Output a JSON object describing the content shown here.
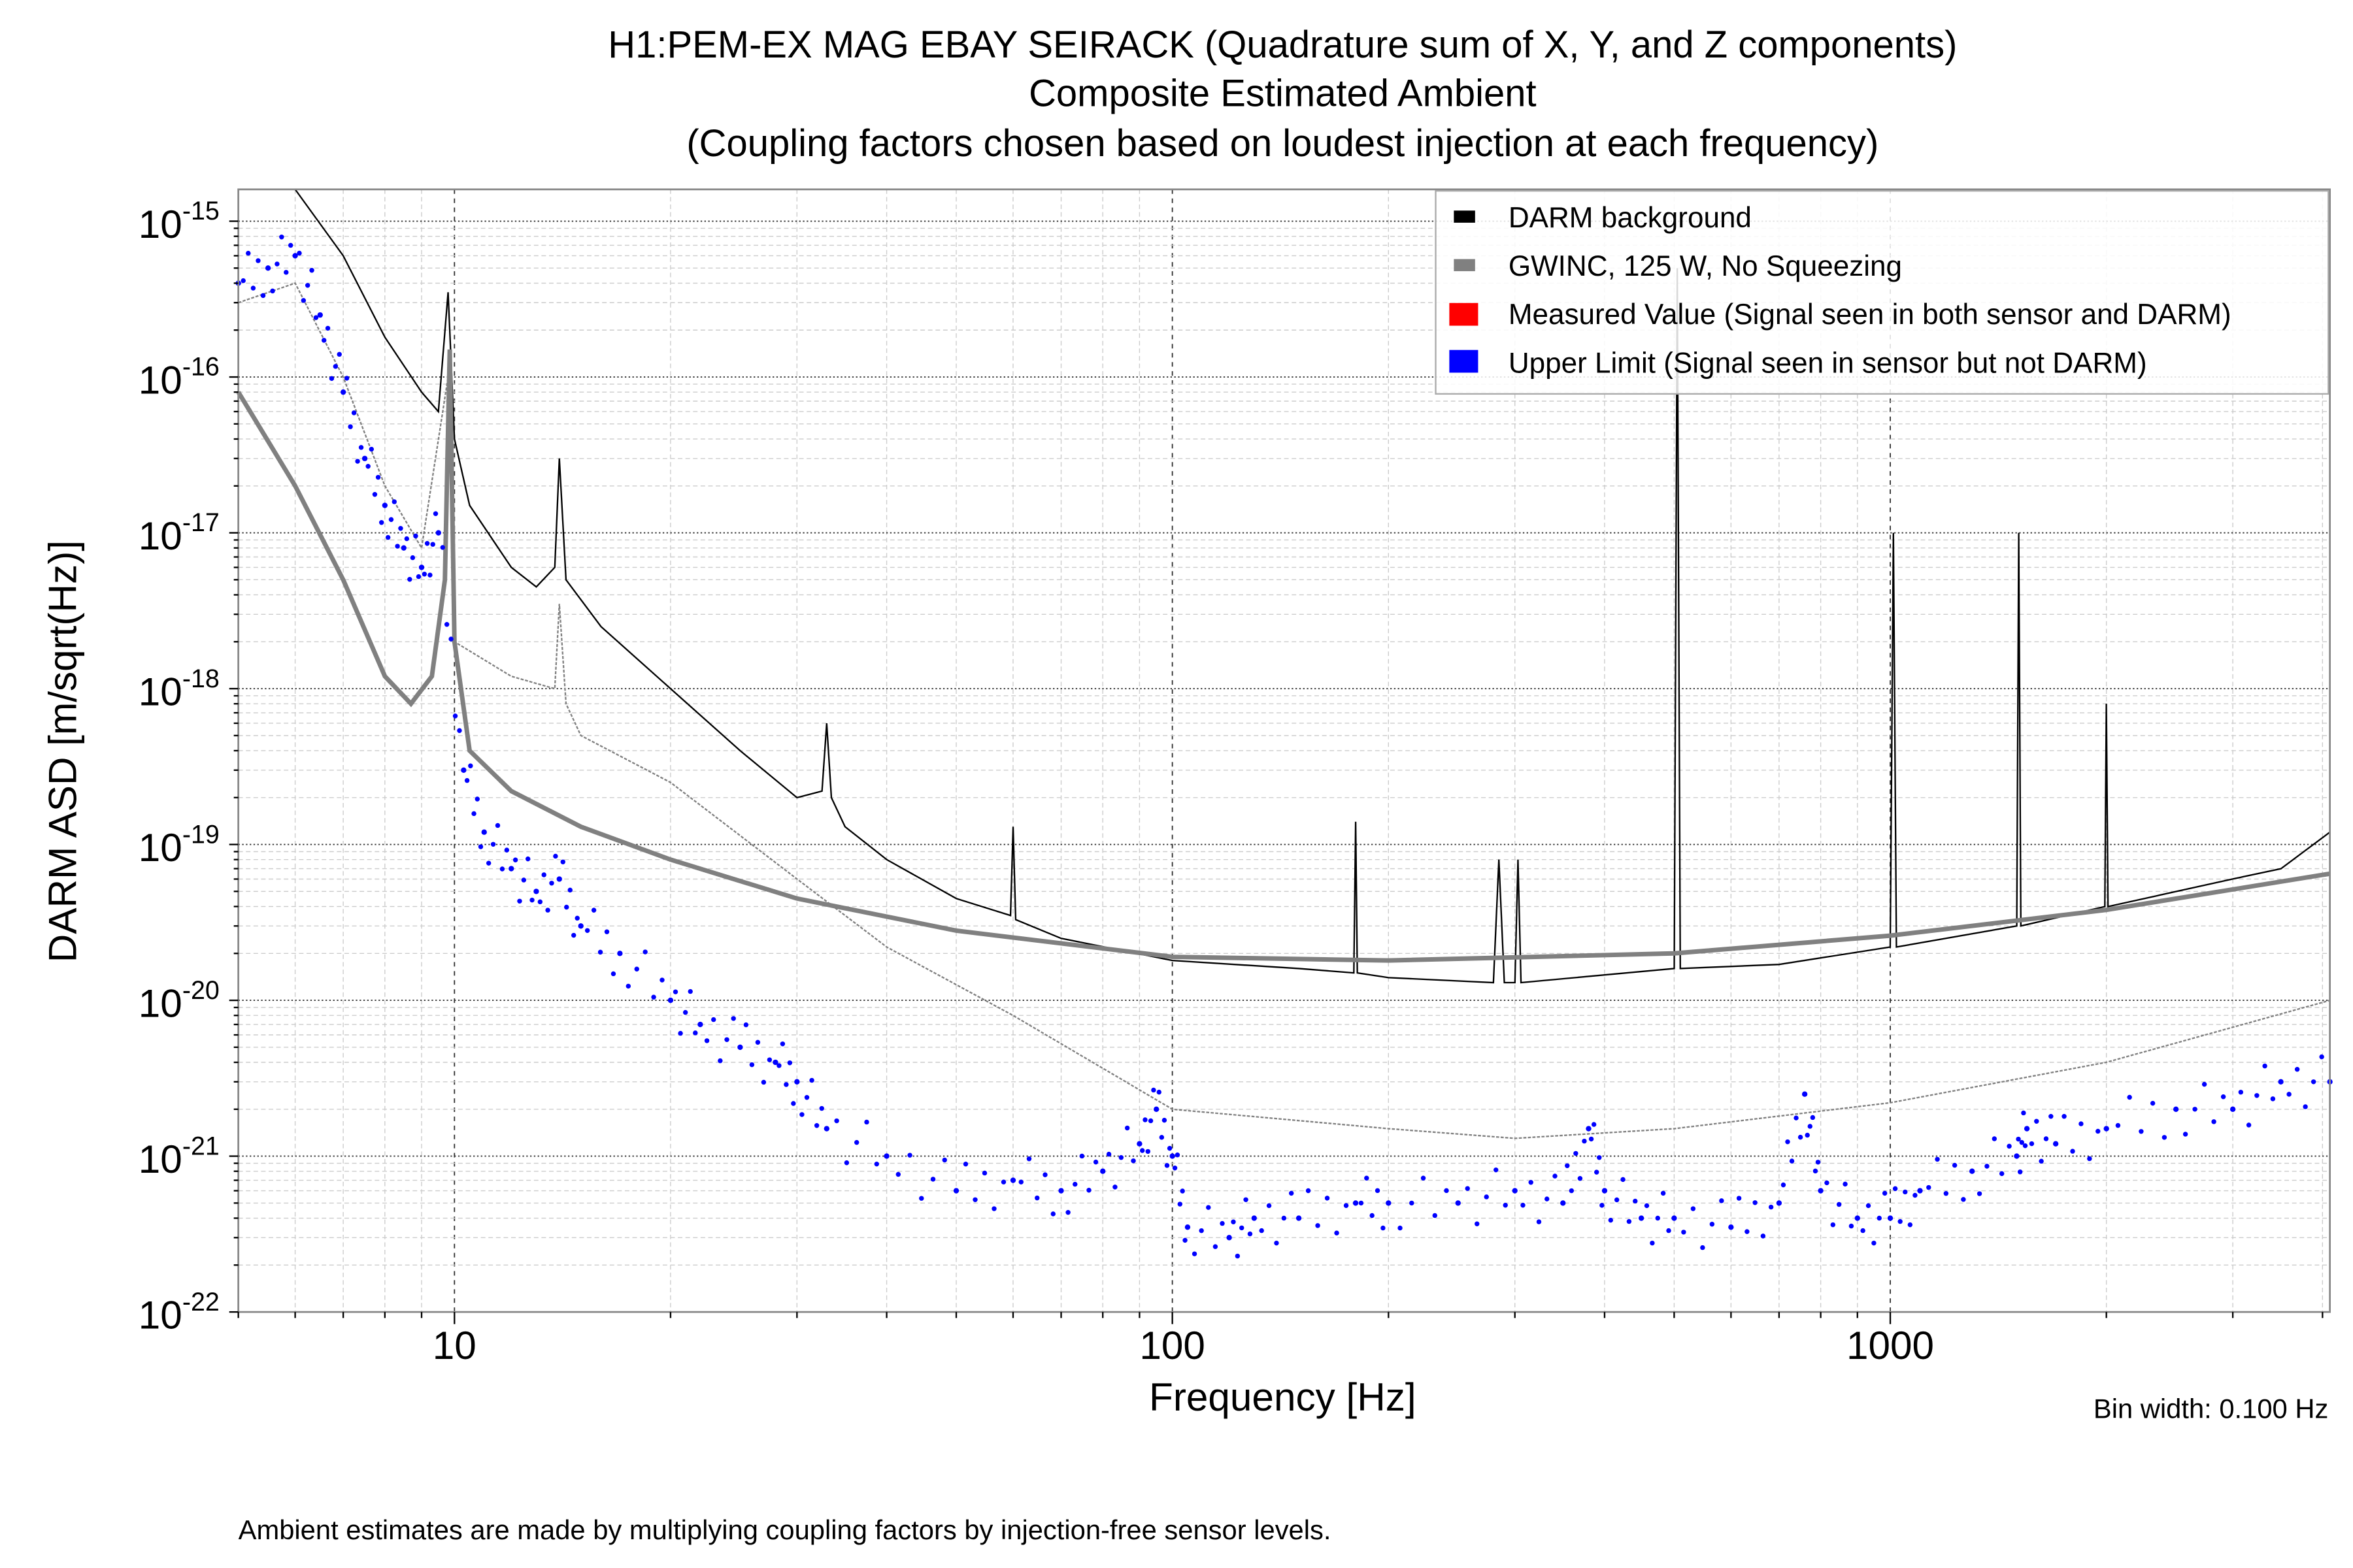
{
  "chart_data": {
    "type": "line",
    "title": [
      "H1:PEM-EX MAG EBAY SEIRACK (Quadrature sum of X, Y, and Z components)",
      "Composite Estimated Ambient",
      "(Coupling factors chosen based on loudest injection at each frequency)"
    ],
    "xlabel": "Frequency [Hz]",
    "ylabel": "DARM ASD [m/sqrt(Hz)]",
    "xscale": "log",
    "yscale": "log",
    "xlim": [
      5,
      4096
    ],
    "ylim": [
      1e-22,
      1.6e-15
    ],
    "x_ticks": [
      {
        "v": 10,
        "label": "10"
      },
      {
        "v": 100,
        "label": "100"
      },
      {
        "v": 1000,
        "label": "1000"
      }
    ],
    "y_ticks": [
      {
        "v": -15,
        "label": "10",
        "exp": "-15"
      },
      {
        "v": -16,
        "label": "10",
        "exp": "-16"
      },
      {
        "v": -17,
        "label": "10",
        "exp": "-17"
      },
      {
        "v": -18,
        "label": "10",
        "exp": "-18"
      },
      {
        "v": -19,
        "label": "10",
        "exp": "-19"
      },
      {
        "v": -20,
        "label": "10",
        "exp": "-20"
      },
      {
        "v": -21,
        "label": "10",
        "exp": "-21"
      },
      {
        "v": -22,
        "label": "10",
        "exp": "-22"
      }
    ],
    "grid": true,
    "legend_position": "top-right",
    "legend": [
      {
        "label": "DARM background",
        "color": "#000000"
      },
      {
        "label": "GWINC, 125 W, No Squeezing",
        "color": "#808080"
      },
      {
        "label": "Measured Value (Signal seen in both sensor and DARM)",
        "color": "#ff0000"
      },
      {
        "label": "Upper Limit (Signal seen in sensor but not DARM)",
        "color": "#0000ff"
      }
    ],
    "series": [
      {
        "name": "DARM background",
        "color": "#000000",
        "style": "thin-line",
        "points": [
          [
            5.8,
            2e-15
          ],
          [
            6,
            1.6e-15
          ],
          [
            7,
            6e-16
          ],
          [
            8,
            1.8e-16
          ],
          [
            9,
            8e-17
          ],
          [
            9.5,
            6e-17
          ],
          [
            9.8,
            3.5e-16
          ],
          [
            10,
            4e-17
          ],
          [
            10.5,
            1.5e-17
          ],
          [
            12,
            6e-18
          ],
          [
            13,
            4.5e-18
          ],
          [
            13.8,
            6e-18
          ],
          [
            14,
            3e-17
          ],
          [
            14.3,
            5e-18
          ],
          [
            16,
            2.5e-18
          ],
          [
            20,
            1e-18
          ],
          [
            25,
            4e-19
          ],
          [
            30,
            2e-19
          ],
          [
            32.5,
            2.2e-19
          ],
          [
            33,
            6e-19
          ],
          [
            33.5,
            2e-19
          ],
          [
            35,
            1.3e-19
          ],
          [
            40,
            8e-20
          ],
          [
            50,
            4.5e-20
          ],
          [
            59.5,
            3.5e-20
          ],
          [
            60,
            1.3e-19
          ],
          [
            60.5,
            3.3e-20
          ],
          [
            70,
            2.5e-20
          ],
          [
            100,
            1.8e-20
          ],
          [
            150,
            1.6e-20
          ],
          [
            179,
            1.5e-20
          ],
          [
            180,
            1.4e-19
          ],
          [
            181,
            1.5e-20
          ],
          [
            200,
            1.4e-20
          ],
          [
            280,
            1.3e-20
          ],
          [
            285,
            8e-20
          ],
          [
            290,
            1.3e-20
          ],
          [
            300,
            1.3e-20
          ],
          [
            303,
            8e-20
          ],
          [
            306,
            1.3e-20
          ],
          [
            500,
            1.6e-20
          ],
          [
            505,
            5e-16
          ],
          [
            510,
            1.6e-20
          ],
          [
            700,
            1.7e-20
          ],
          [
            1000,
            2.2e-20
          ],
          [
            1010,
            1e-17
          ],
          [
            1020,
            2.2e-20
          ],
          [
            1500,
            3e-20
          ],
          [
            1510,
            1e-17
          ],
          [
            1520,
            3e-20
          ],
          [
            1990,
            4e-20
          ],
          [
            2000,
            8e-19
          ],
          [
            2010,
            4e-20
          ],
          [
            3000,
            6e-20
          ],
          [
            3500,
            7e-20
          ],
          [
            4096,
            1.2e-19
          ]
        ]
      },
      {
        "name": "GWINC, 125 W, No Squeezing",
        "color": "#808080",
        "style": "thick-line",
        "points": [
          [
            5,
            8e-17
          ],
          [
            6,
            2e-17
          ],
          [
            7,
            5e-18
          ],
          [
            8,
            1.2e-18
          ],
          [
            8.7,
            8e-19
          ],
          [
            9.3,
            1.2e-18
          ],
          [
            9.7,
            5e-18
          ],
          [
            9.85,
            1.5e-16
          ],
          [
            10,
            2e-18
          ],
          [
            10.5,
            4e-19
          ],
          [
            12,
            2.2e-19
          ],
          [
            15,
            1.3e-19
          ],
          [
            20,
            8e-20
          ],
          [
            30,
            4.5e-20
          ],
          [
            50,
            2.8e-20
          ],
          [
            100,
            1.9e-20
          ],
          [
            200,
            1.8e-20
          ],
          [
            500,
            2e-20
          ],
          [
            1000,
            2.6e-20
          ],
          [
            2000,
            3.8e-20
          ],
          [
            4096,
            6.5e-20
          ]
        ]
      },
      {
        "color": "#808080",
        "style": "dashed-thin-line",
        "points": [
          [
            5,
            3e-16
          ],
          [
            6,
            4e-16
          ],
          [
            7,
            1e-16
          ],
          [
            8,
            2e-17
          ],
          [
            9,
            8e-18
          ],
          [
            9.8,
            1e-16
          ],
          [
            10,
            2e-18
          ],
          [
            12,
            1.2e-18
          ],
          [
            13.8,
            1e-18
          ],
          [
            14,
            3.5e-18
          ],
          [
            14.3,
            8e-19
          ],
          [
            15,
            5e-19
          ],
          [
            20,
            2.5e-19
          ],
          [
            30,
            6e-20
          ],
          [
            40,
            2.2e-20
          ],
          [
            60,
            8e-21
          ],
          [
            100,
            2e-21
          ],
          [
            200,
            1.5e-21
          ],
          [
            300,
            1.3e-21
          ],
          [
            500,
            1.5e-21
          ],
          [
            1000,
            2.2e-21
          ],
          [
            2000,
            4e-21
          ],
          [
            4096,
            1e-20
          ]
        ]
      },
      {
        "name": "Upper Limit (Signal seen in sensor but not DARM)",
        "color": "#0000ff",
        "style": "dots",
        "points": [
          [
            5,
            4e-16
          ],
          [
            5.5,
            5e-16
          ],
          [
            6,
            6e-16
          ],
          [
            6.5,
            2.5e-16
          ],
          [
            7,
            8e-17
          ],
          [
            7.5,
            3e-17
          ],
          [
            8,
            1.5e-17
          ],
          [
            8.5,
            8e-18
          ],
          [
            9,
            6e-18
          ],
          [
            9.5,
            1e-17
          ],
          [
            10.3,
            3e-19
          ],
          [
            11,
            1.2e-19
          ],
          [
            12,
            7e-20
          ],
          [
            13,
            5e-20
          ],
          [
            14,
            6e-20
          ],
          [
            15,
            3e-20
          ],
          [
            17,
            2e-20
          ],
          [
            20,
            1e-20
          ],
          [
            22,
            7e-21
          ],
          [
            25,
            5e-21
          ],
          [
            28,
            4e-21
          ],
          [
            30,
            3e-21
          ],
          [
            33,
            1.5e-21
          ],
          [
            40,
            1e-21
          ],
          [
            50,
            6e-22
          ],
          [
            60,
            7e-22
          ],
          [
            70,
            6e-22
          ],
          [
            80,
            8e-22
          ],
          [
            90,
            1.2e-21
          ],
          [
            95,
            2e-21
          ],
          [
            100,
            1e-21
          ],
          [
            105,
            3.5e-22
          ],
          [
            120,
            3e-22
          ],
          [
            130,
            4e-22
          ],
          [
            150,
            4e-22
          ],
          [
            180,
            5e-22
          ],
          [
            200,
            5e-22
          ],
          [
            250,
            5e-22
          ],
          [
            300,
            6e-22
          ],
          [
            350,
            5e-22
          ],
          [
            380,
            1.5e-21
          ],
          [
            400,
            6e-22
          ],
          [
            450,
            4e-22
          ],
          [
            500,
            4e-22
          ],
          [
            600,
            3.5e-22
          ],
          [
            700,
            5e-22
          ],
          [
            760,
            2.5e-21
          ],
          [
            800,
            6e-22
          ],
          [
            900,
            4e-22
          ],
          [
            1000,
            4e-22
          ],
          [
            1100,
            6e-22
          ],
          [
            1300,
            8e-22
          ],
          [
            1500,
            1e-21
          ],
          [
            1550,
            1.5e-21
          ],
          [
            1700,
            1.2e-21
          ],
          [
            2000,
            1.5e-21
          ],
          [
            2500,
            2e-21
          ],
          [
            3000,
            2e-21
          ],
          [
            3500,
            3e-21
          ],
          [
            4096,
            3e-21
          ]
        ]
      }
    ],
    "annotations": {
      "bin_width": "Bin width: 0.100 Hz",
      "footnote": "Ambient estimates are made by multiplying coupling factors by injection-free sensor levels."
    }
  }
}
